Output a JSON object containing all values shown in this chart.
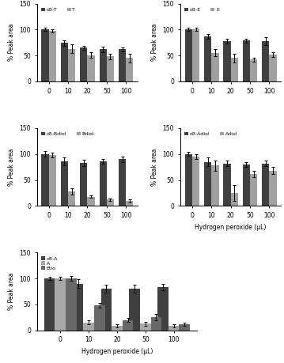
{
  "x_labels": [
    0,
    10,
    20,
    50,
    100
  ],
  "x_label": "Hydrogen peroxide (μL)",
  "y_label": "% Peak area",
  "y_lim": [
    0,
    150
  ],
  "y_ticks": [
    0,
    50,
    100,
    150
  ],
  "panel1": {
    "legend": [
      "d3-T",
      "T"
    ],
    "colors": [
      "#404040",
      "#a0a0a0"
    ],
    "values": [
      [
        100,
        74,
        65,
        62,
        62
      ],
      [
        97,
        63,
        51,
        48,
        45
      ]
    ],
    "errors": [
      [
        3,
        5,
        4,
        5,
        4
      ],
      [
        3,
        8,
        5,
        5,
        8
      ]
    ]
  },
  "panel2": {
    "legend": [
      "d3-E",
      "E"
    ],
    "colors": [
      "#404040",
      "#a0a0a0"
    ],
    "values": [
      [
        100,
        87,
        78,
        79,
        78
      ],
      [
        100,
        55,
        45,
        42,
        52
      ]
    ],
    "errors": [
      [
        3,
        5,
        5,
        4,
        8
      ],
      [
        3,
        7,
        8,
        4,
        5
      ]
    ]
  },
  "panel3": {
    "legend": [
      "d5-Bdiol",
      "Bdiol"
    ],
    "colors": [
      "#404040",
      "#a0a0a0"
    ],
    "values": [
      [
        100,
        86,
        83,
        86,
        90
      ],
      [
        98,
        28,
        18,
        12,
        10
      ]
    ],
    "errors": [
      [
        5,
        7,
        6,
        4,
        5
      ],
      [
        4,
        6,
        3,
        2,
        3
      ]
    ]
  },
  "panel4": {
    "legend": [
      "d3-Adiol",
      "Adiol"
    ],
    "colors": [
      "#404040",
      "#a0a0a0"
    ],
    "values": [
      [
        100,
        85,
        82,
        80,
        82
      ],
      [
        95,
        78,
        25,
        62,
        68
      ]
    ],
    "errors": [
      [
        4,
        9,
        6,
        5,
        5
      ],
      [
        5,
        10,
        15,
        6,
        7
      ]
    ]
  },
  "panel5": {
    "legend": [
      "d4-A",
      "A",
      "Etio"
    ],
    "colors": [
      "#404040",
      "#a8a8a8",
      "#686868"
    ],
    "values": [
      [
        100,
        90,
        80,
        80,
        84
      ],
      [
        100,
        15,
        8,
        13,
        9
      ],
      [
        100,
        48,
        20,
        26,
        12
      ]
    ],
    "errors": [
      [
        3,
        8,
        8,
        8,
        6
      ],
      [
        3,
        4,
        3,
        4,
        3
      ],
      [
        4,
        5,
        4,
        6,
        3
      ]
    ]
  }
}
